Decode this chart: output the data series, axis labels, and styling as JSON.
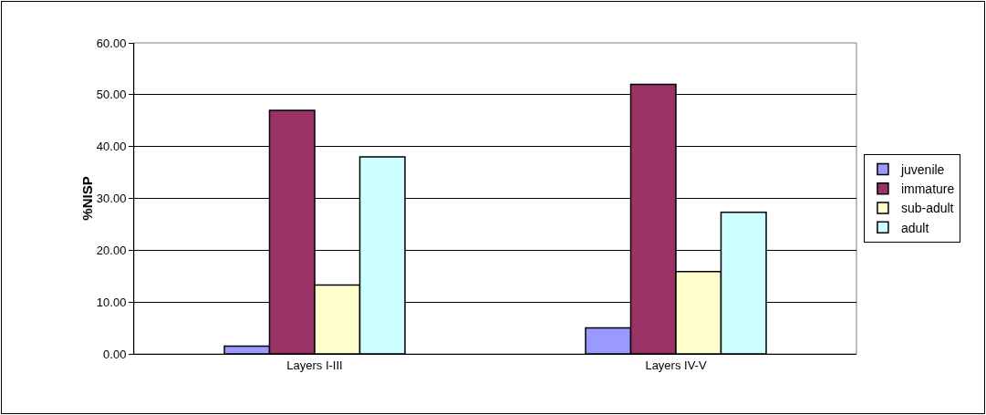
{
  "chart_data": {
    "type": "bar",
    "ylabel": "%NISP",
    "categories": [
      "Layers I-III",
      "Layers IV-V"
    ],
    "series": [
      {
        "name": "juvenile",
        "color": "#9999ff",
        "values": [
          1.5,
          5.0
        ]
      },
      {
        "name": "immature",
        "color": "#993366",
        "values": [
          47.0,
          52.0
        ]
      },
      {
        "name": "sub-adult",
        "color": "#ffffcc",
        "values": [
          13.3,
          15.9
        ]
      },
      {
        "name": "adult",
        "color": "#ccffff",
        "values": [
          38.0,
          27.3
        ]
      }
    ],
    "ylim": [
      0,
      60
    ],
    "yticks": [
      {
        "value": 0,
        "label": "0.00"
      },
      {
        "value": 10,
        "label": "10.00"
      },
      {
        "value": 20,
        "label": "20.00"
      },
      {
        "value": 30,
        "label": "30.00"
      },
      {
        "value": 40,
        "label": "40.00"
      },
      {
        "value": 50,
        "label": "50.00"
      },
      {
        "value": 60,
        "label": "60.00"
      }
    ],
    "grid": "y",
    "legend": "right"
  }
}
